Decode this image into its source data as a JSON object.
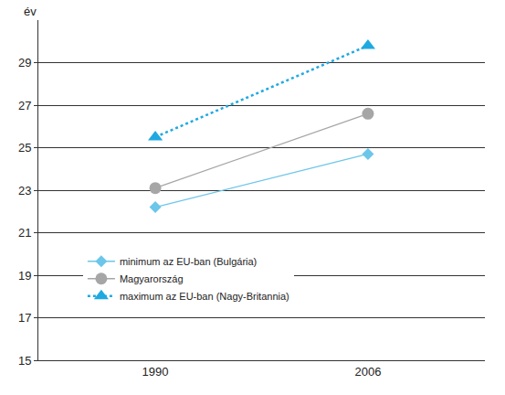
{
  "chart_data": {
    "type": "line",
    "y_label": "év",
    "categories": [
      "1990",
      "2006"
    ],
    "series": [
      {
        "name": "minimum az EU-ban (Bulgária)",
        "color": "#6cc6ea",
        "marker": "diamond",
        "line_style": "solid",
        "values": [
          22.2,
          24.7
        ]
      },
      {
        "name": "Magyarország",
        "color": "#a6a6a6",
        "marker": "circle",
        "line_style": "solid",
        "values": [
          23.1,
          26.6
        ]
      },
      {
        "name": "maximum az EU-ban (Nagy-Britannia)",
        "color": "#1fa9e1",
        "marker": "triangle-up",
        "line_style": "dot",
        "values": [
          25.5,
          29.8
        ]
      }
    ],
    "ylim": [
      15,
      31
    ],
    "yticks": [
      15,
      17,
      19,
      21,
      23,
      25,
      27,
      29
    ],
    "grid": true,
    "legend": "lower center"
  }
}
